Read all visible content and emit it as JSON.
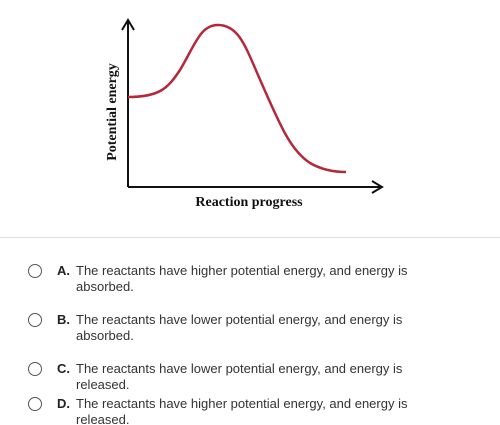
{
  "diagram": {
    "y_label": "Potential energy",
    "x_label": "Reaction progress"
  },
  "options": [
    {
      "letter": "A.",
      "text": "The reactants have higher potential energy, and energy is absorbed."
    },
    {
      "letter": "B.",
      "text": "The reactants have lower potential energy, and energy is absorbed."
    },
    {
      "letter": "C.",
      "text": "The reactants have lower potential energy, and energy is released."
    },
    {
      "letter": "D.",
      "text": "The reactants have higher potential energy, and energy is released."
    }
  ]
}
